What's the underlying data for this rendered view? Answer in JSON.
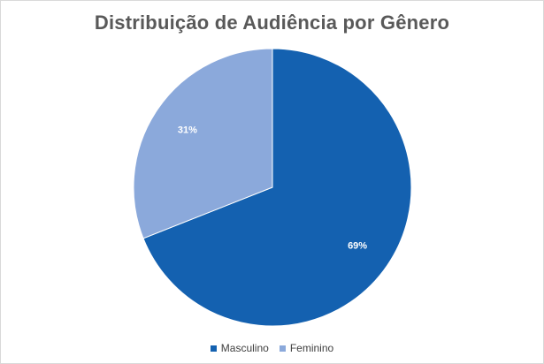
{
  "chart_data": {
    "type": "pie",
    "title": "Distribuição de Audiência por Gênero",
    "categories": [
      "Masculino",
      "Feminino"
    ],
    "values": [
      69,
      31
    ],
    "data_labels": [
      "69%",
      "31%"
    ],
    "colors": [
      "#1461b0",
      "#8ba9db"
    ],
    "start_angle_deg": 0,
    "direction": "clockwise",
    "legend_position": "bottom"
  }
}
